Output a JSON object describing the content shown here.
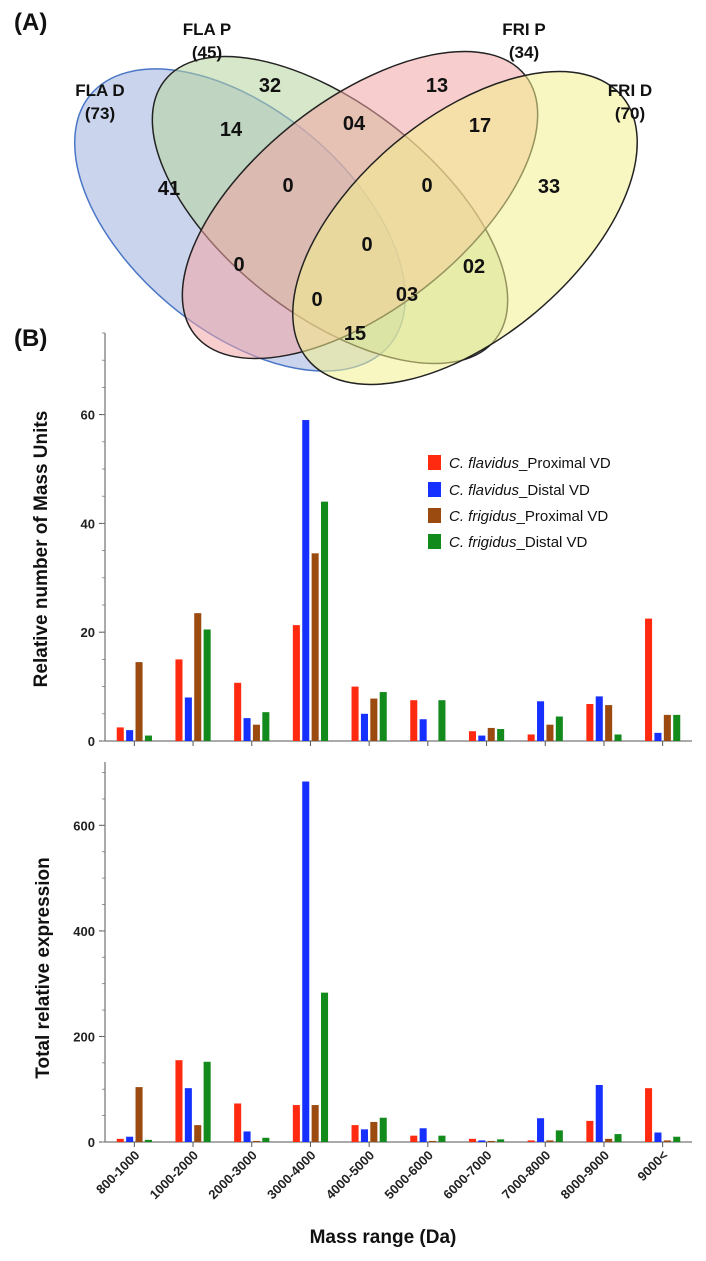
{
  "panel_labels": {
    "a": "(A)",
    "b": "(B)"
  },
  "venn": {
    "sets": [
      {
        "name": "FLA D",
        "count": "(73)",
        "color": "#9fb3de"
      },
      {
        "name": "FLA P",
        "count": "(45)",
        "color": "#b7d39c"
      },
      {
        "name": "FRI P",
        "count": "(34)",
        "color": "#f2a4a4"
      },
      {
        "name": "FRI D",
        "count": "(70)",
        "color": "#f4f08e"
      }
    ],
    "regions": [
      "41",
      "32",
      "13",
      "33",
      "14",
      "04",
      "17",
      "0",
      "0",
      "0",
      "0",
      "02",
      "0",
      "03",
      "15"
    ]
  },
  "legend": [
    {
      "italic": "C. flavidus",
      "rest": "_Proximal VD",
      "color": "#ff2a10"
    },
    {
      "italic": "C. flavidus",
      "rest": "_Distal VD",
      "color": "#1530ff"
    },
    {
      "italic": "C. frigidus",
      "rest": "_Proximal VD",
      "color": "#9b4a10"
    },
    {
      "italic": "C. frigidus",
      "rest": "_Distal VD",
      "color": "#138a1c"
    }
  ],
  "chart_data": [
    {
      "type": "bar",
      "title": "",
      "xlabel": "",
      "ylabel": "Relative number of Mass Units",
      "ylim": [
        0,
        75
      ],
      "yticks": [
        0,
        20,
        40,
        60
      ],
      "categories": [
        "800-1000",
        "1000-2000",
        "2000-3000",
        "3000-4000",
        "4000-5000",
        "5000-6000",
        "6000-7000",
        "7000-8000",
        "8000-9000",
        "9000<"
      ],
      "series": [
        {
          "name": "C. flavidus_Proximal VD",
          "values": [
            2.5,
            15,
            10.7,
            21.3,
            10,
            7.5,
            1.8,
            1.2,
            6.8,
            22.5
          ]
        },
        {
          "name": "C. flavidus_Distal VD",
          "values": [
            2,
            8,
            4.2,
            59,
            5,
            4,
            1,
            7.3,
            8.2,
            1.5
          ]
        },
        {
          "name": "C. frigidus_Proximal VD",
          "values": [
            14.5,
            23.5,
            3,
            34.5,
            7.8,
            0,
            2.4,
            3,
            6.6,
            4.8
          ]
        },
        {
          "name": "C. frigidus_Distal VD",
          "values": [
            1,
            20.5,
            5.3,
            44,
            9,
            7.5,
            2.2,
            4.5,
            1.2,
            4.8
          ]
        }
      ]
    },
    {
      "type": "bar",
      "title": "",
      "xlabel": "Mass range (Da)",
      "ylabel": "Total relative expression",
      "ylim": [
        0,
        720
      ],
      "yticks": [
        0,
        200,
        400,
        600
      ],
      "categories": [
        "800-1000",
        "1000-2000",
        "2000-3000",
        "3000-4000",
        "4000-5000",
        "5000-6000",
        "6000-7000",
        "7000-8000",
        "8000-9000",
        "9000<"
      ],
      "series": [
        {
          "name": "C. flavidus_Proximal VD",
          "values": [
            6,
            155,
            73,
            70,
            32,
            12,
            6,
            3,
            40,
            102
          ]
        },
        {
          "name": "C. flavidus_Distal VD",
          "values": [
            10,
            102,
            20,
            683,
            24,
            26,
            3,
            45,
            108,
            18
          ]
        },
        {
          "name": "C. frigidus_Proximal VD",
          "values": [
            104,
            32,
            2,
            70,
            38,
            2,
            2,
            3,
            6,
            3
          ]
        },
        {
          "name": "C. frigidus_Distal VD",
          "values": [
            4,
            152,
            8,
            283,
            46,
            12,
            5,
            22,
            15,
            10
          ]
        }
      ]
    }
  ]
}
